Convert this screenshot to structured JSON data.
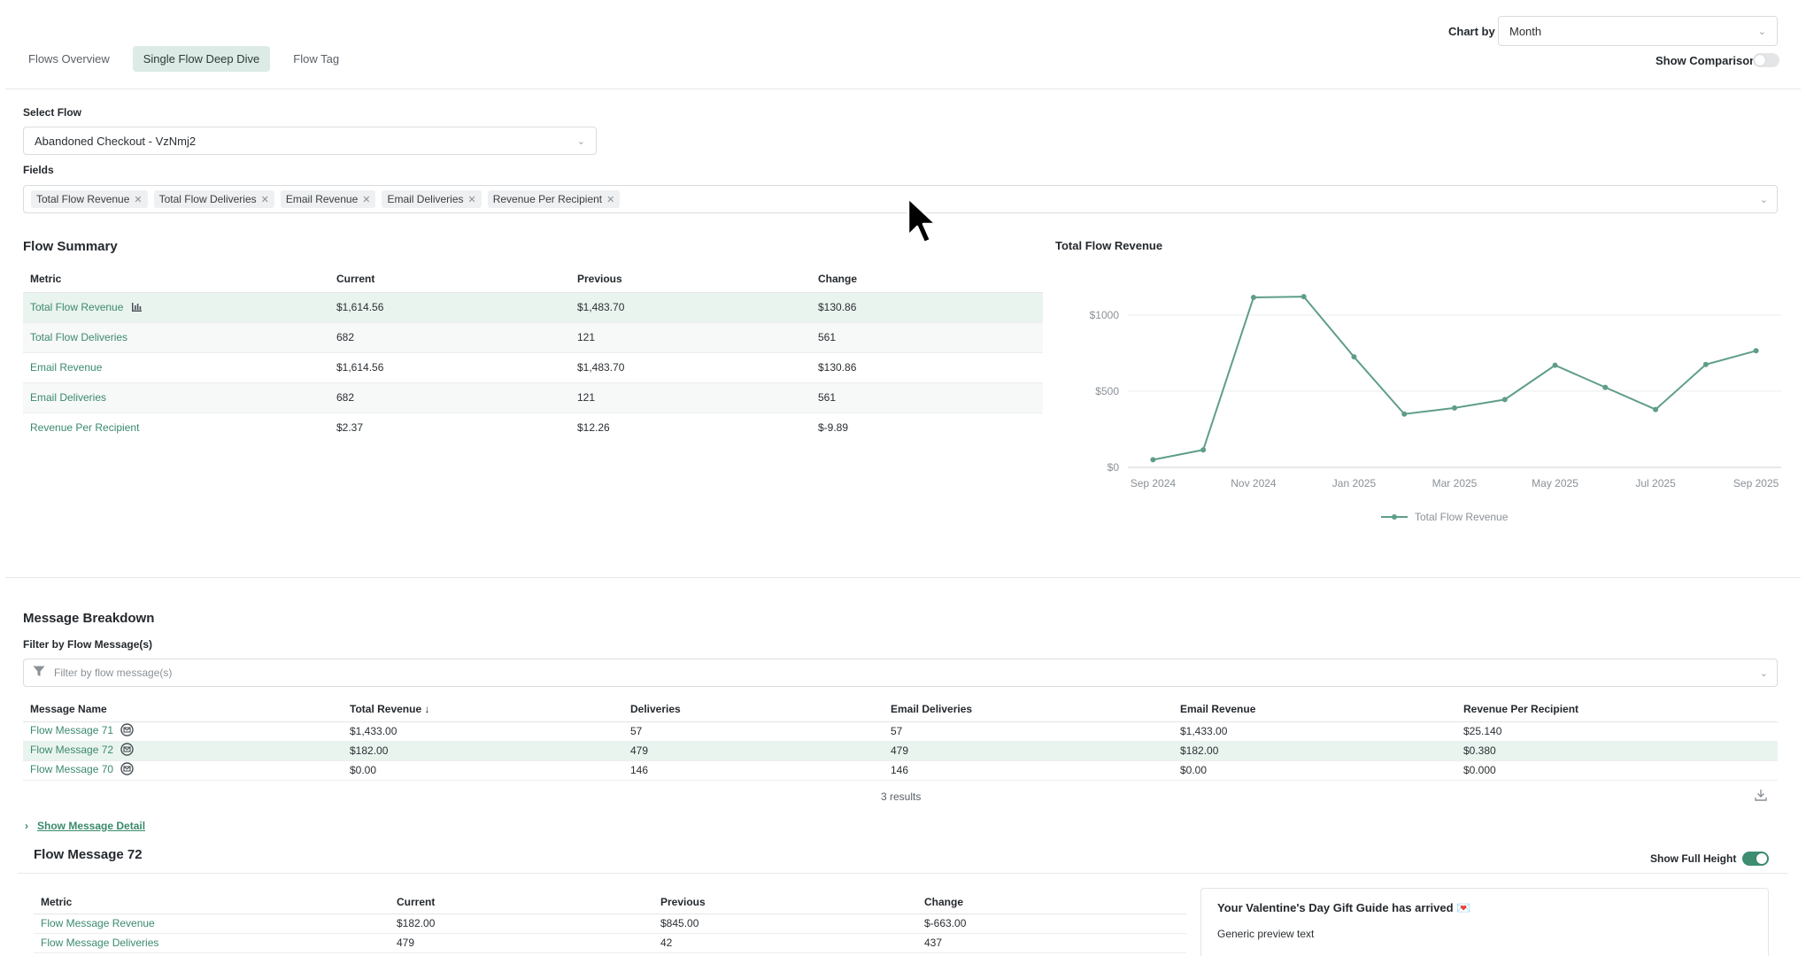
{
  "tabs": [
    {
      "label": "Flows Overview",
      "active": false
    },
    {
      "label": "Single Flow Deep Dive",
      "active": true
    },
    {
      "label": "Flow Tag",
      "active": false
    }
  ],
  "chart_by": {
    "label": "Chart by",
    "value": "Month"
  },
  "show_comparison": {
    "label": "Show Comparison",
    "on": false
  },
  "select_flow": {
    "label": "Select Flow",
    "value": "Abandoned Checkout - VzNmj2"
  },
  "fields": {
    "label": "Fields",
    "chips": [
      "Total Flow Revenue",
      "Total Flow Deliveries",
      "Email Revenue",
      "Email Deliveries",
      "Revenue Per Recipient"
    ]
  },
  "flow_summary": {
    "title": "Flow Summary",
    "columns": [
      "Metric",
      "Current",
      "Previous",
      "Change"
    ],
    "rows": [
      {
        "metric": "Total Flow Revenue",
        "current": "$1,614.56",
        "previous": "$1,483.70",
        "change": "$130.86"
      },
      {
        "metric": "Total Flow Deliveries",
        "current": "682",
        "previous": "121",
        "change": "561"
      },
      {
        "metric": "Email Revenue",
        "current": "$1,614.56",
        "previous": "$1,483.70",
        "change": "$130.86"
      },
      {
        "metric": "Email Deliveries",
        "current": "682",
        "previous": "121",
        "change": "561"
      },
      {
        "metric": "Revenue Per Recipient",
        "current": "$2.37",
        "previous": "$12.26",
        "change": "$-9.89"
      }
    ]
  },
  "chart": {
    "title": "Total Flow Revenue",
    "line_color": "#5e9e86"
  },
  "chart_data": {
    "type": "line",
    "title": "Total Flow Revenue",
    "x": [
      "Sep 2024",
      "Oct 2024",
      "Nov 2024",
      "Dec 2024",
      "Jan 2025",
      "Feb 2025",
      "Mar 2025",
      "Apr 2025",
      "May 2025",
      "Jun 2025",
      "Jul 2025",
      "Aug 2025",
      "Sep 2025"
    ],
    "x_tick_labels": [
      "Sep 2024",
      "Nov 2024",
      "Jan 2025",
      "Mar 2025",
      "May 2025",
      "Jul 2025",
      "Sep 2025"
    ],
    "y_tick_labels": [
      "$0",
      "$500",
      "$1000"
    ],
    "series": [
      {
        "name": "Total Flow Revenue",
        "values": [
          50,
          115,
          1115,
          1120,
          725,
          350,
          390,
          445,
          670,
          525,
          380,
          675,
          765
        ]
      }
    ],
    "ylim": [
      0,
      1150
    ],
    "xlabel": "",
    "ylabel": "",
    "grid": true,
    "legend": "bottom"
  },
  "message_breakdown": {
    "title": "Message Breakdown",
    "filter_label": "Filter by Flow Message(s)",
    "filter_placeholder": "Filter by flow message(s)",
    "columns": [
      "Message Name",
      "Total Revenue ↓",
      "Deliveries",
      "Email Deliveries",
      "Email Revenue",
      "Revenue Per Recipient"
    ],
    "rows": [
      {
        "name": "Flow Message 71",
        "total_revenue": "$1,433.00",
        "deliveries": "57",
        "email_deliveries": "57",
        "email_revenue": "$1,433.00",
        "rpr": "$25.140"
      },
      {
        "name": "Flow Message 72",
        "total_revenue": "$182.00",
        "deliveries": "479",
        "email_deliveries": "479",
        "email_revenue": "$182.00",
        "rpr": "$0.380"
      },
      {
        "name": "Flow Message 70",
        "total_revenue": "$0.00",
        "deliveries": "146",
        "email_deliveries": "146",
        "email_revenue": "$0.00",
        "rpr": "$0.000"
      }
    ],
    "results": "3 results",
    "show_detail": "Show Message Detail"
  },
  "message_detail": {
    "title": "Flow Message 72",
    "full_height_label": "Show Full Height",
    "full_height_on": true,
    "columns": [
      "Metric",
      "Current",
      "Previous",
      "Change"
    ],
    "rows": [
      {
        "metric": "Flow Message Revenue",
        "current": "$182.00",
        "previous": "$845.00",
        "change": "$-663.00"
      },
      {
        "metric": "Flow Message Deliveries",
        "current": "479",
        "previous": "42",
        "change": "437"
      }
    ],
    "email_subject": "Your Valentine's Day Gift Guide has arrived 💌",
    "email_preview": "Generic preview text"
  }
}
